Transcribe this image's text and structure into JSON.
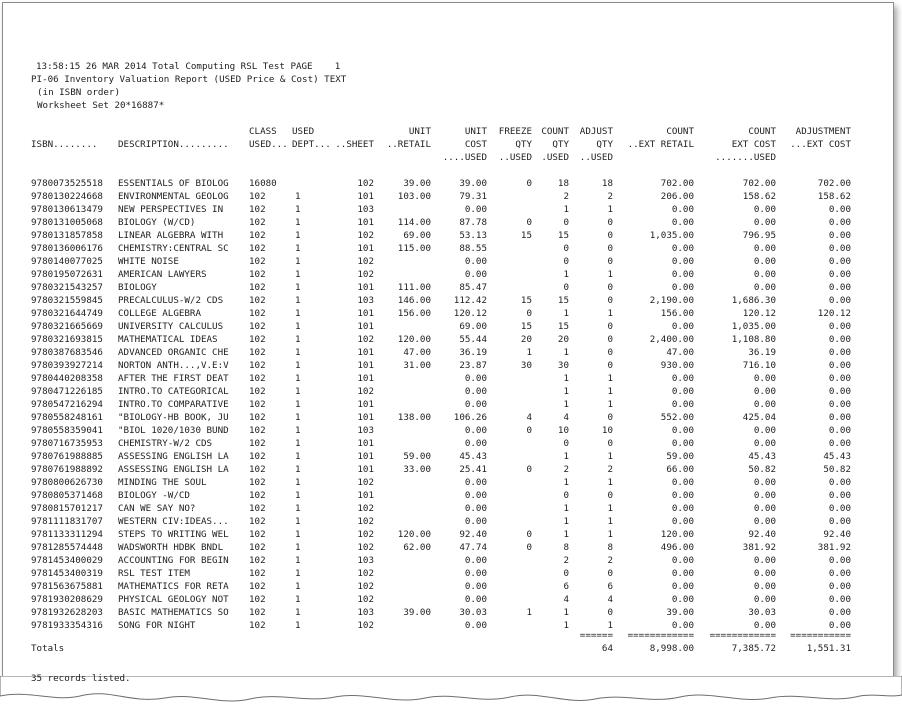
{
  "header": {
    "line1": "13:58:15 26 MAR 2014 Total Computing RSL Test PAGE    1",
    "line2": "PI-06 Inventory Valuation Report (USED Price & Cost) TEXT",
    "line3": "(in ISBN order)",
    "line4": "Worksheet Set 20*16887*"
  },
  "columns": {
    "isbn": [
      "",
      "ISBN........",
      ""
    ],
    "desc": [
      "",
      "DESCRIPTION.........",
      ""
    ],
    "class": [
      "CLASS",
      "USED...",
      ""
    ],
    "dept": [
      "USED",
      "DEPT...",
      ""
    ],
    "sheet": [
      "",
      "..SHEET",
      ""
    ],
    "retail": [
      "UNIT",
      "..RETAIL",
      ""
    ],
    "cost": [
      "UNIT",
      "COST",
      "....USED"
    ],
    "freeze": [
      "FREEZE",
      "QTY",
      "..USED"
    ],
    "count": [
      "COUNT",
      "QTY",
      ".USED"
    ],
    "adjust": [
      "ADJUST",
      "QTY",
      "..USED"
    ],
    "extret": [
      "COUNT",
      "..EXT RETAIL",
      ""
    ],
    "extcost": [
      "COUNT",
      "EXT COST",
      ".......USED"
    ],
    "adjcost": [
      "ADJUSTMENT",
      "...EXT COST",
      ""
    ]
  },
  "rows": [
    {
      "isbn": "9780073525518",
      "desc": "ESSENTIALS OF BIOLOG",
      "class": "16080",
      "dept": "",
      "sheet": "102",
      "retail": "39.00",
      "cost": "39.00",
      "freeze": "0",
      "count": "18",
      "adjust": "18",
      "extret": "702.00",
      "extcost": "702.00",
      "adjcost": "702.00"
    },
    {
      "isbn": "9780130224668",
      "desc": "ENVIRONMENTAL GEOLOG",
      "class": "102",
      "dept": "1",
      "sheet": "101",
      "retail": "103.00",
      "cost": "79.31",
      "freeze": "",
      "count": "2",
      "adjust": "2",
      "extret": "206.00",
      "extcost": "158.62",
      "adjcost": "158.62"
    },
    {
      "isbn": "9780130613479",
      "desc": "NEW PERSPECTIVES IN",
      "class": "102",
      "dept": "1",
      "sheet": "103",
      "retail": "",
      "cost": "0.00",
      "freeze": "",
      "count": "1",
      "adjust": "1",
      "extret": "0.00",
      "extcost": "0.00",
      "adjcost": "0.00"
    },
    {
      "isbn": "9780131005068",
      "desc": "BIOLOGY (W/CD)",
      "class": "102",
      "dept": "1",
      "sheet": "101",
      "retail": "114.00",
      "cost": "87.78",
      "freeze": "0",
      "count": "0",
      "adjust": "0",
      "extret": "0.00",
      "extcost": "0.00",
      "adjcost": "0.00"
    },
    {
      "isbn": "9780131857858",
      "desc": "LINEAR ALGEBRA WITH",
      "class": "102",
      "dept": "1",
      "sheet": "102",
      "retail": "69.00",
      "cost": "53.13",
      "freeze": "15",
      "count": "15",
      "adjust": "0",
      "extret": "1,035.00",
      "extcost": "796.95",
      "adjcost": "0.00"
    },
    {
      "isbn": "9780136006176",
      "desc": "CHEMISTRY:CENTRAL SC",
      "class": "102",
      "dept": "1",
      "sheet": "101",
      "retail": "115.00",
      "cost": "88.55",
      "freeze": "",
      "count": "0",
      "adjust": "0",
      "extret": "0.00",
      "extcost": "0.00",
      "adjcost": "0.00"
    },
    {
      "isbn": "9780140077025",
      "desc": "WHITE NOISE",
      "class": "102",
      "dept": "1",
      "sheet": "102",
      "retail": "",
      "cost": "0.00",
      "freeze": "",
      "count": "0",
      "adjust": "0",
      "extret": "0.00",
      "extcost": "0.00",
      "adjcost": "0.00"
    },
    {
      "isbn": "9780195072631",
      "desc": "AMERICAN LAWYERS",
      "class": "102",
      "dept": "1",
      "sheet": "102",
      "retail": "",
      "cost": "0.00",
      "freeze": "",
      "count": "1",
      "adjust": "1",
      "extret": "0.00",
      "extcost": "0.00",
      "adjcost": "0.00"
    },
    {
      "isbn": "9780321543257",
      "desc": "BIOLOGY",
      "class": "102",
      "dept": "1",
      "sheet": "101",
      "retail": "111.00",
      "cost": "85.47",
      "freeze": "",
      "count": "0",
      "adjust": "0",
      "extret": "0.00",
      "extcost": "0.00",
      "adjcost": "0.00"
    },
    {
      "isbn": "9780321559845",
      "desc": "PRECALCULUS-W/2 CDS",
      "class": "102",
      "dept": "1",
      "sheet": "103",
      "retail": "146.00",
      "cost": "112.42",
      "freeze": "15",
      "count": "15",
      "adjust": "0",
      "extret": "2,190.00",
      "extcost": "1,686.30",
      "adjcost": "0.00"
    },
    {
      "isbn": "9780321644749",
      "desc": "COLLEGE ALGEBRA",
      "class": "102",
      "dept": "1",
      "sheet": "101",
      "retail": "156.00",
      "cost": "120.12",
      "freeze": "0",
      "count": "1",
      "adjust": "1",
      "extret": "156.00",
      "extcost": "120.12",
      "adjcost": "120.12"
    },
    {
      "isbn": "9780321665669",
      "desc": "UNIVERSITY CALCULUS",
      "class": "102",
      "dept": "1",
      "sheet": "101",
      "retail": "",
      "cost": "69.00",
      "freeze": "15",
      "count": "15",
      "adjust": "0",
      "extret": "0.00",
      "extcost": "1,035.00",
      "adjcost": "0.00"
    },
    {
      "isbn": "9780321693815",
      "desc": "MATHEMATICAL IDEAS",
      "class": "102",
      "dept": "1",
      "sheet": "102",
      "retail": "120.00",
      "cost": "55.44",
      "freeze": "20",
      "count": "20",
      "adjust": "0",
      "extret": "2,400.00",
      "extcost": "1,108.80",
      "adjcost": "0.00"
    },
    {
      "isbn": "9780387683546",
      "desc": "ADVANCED ORGANIC CHE",
      "class": "102",
      "dept": "1",
      "sheet": "101",
      "retail": "47.00",
      "cost": "36.19",
      "freeze": "1",
      "count": "1",
      "adjust": "0",
      "extret": "47.00",
      "extcost": "36.19",
      "adjcost": "0.00"
    },
    {
      "isbn": "9780393927214",
      "desc": "NORTON ANTH...,V.E:V",
      "class": "102",
      "dept": "1",
      "sheet": "101",
      "retail": "31.00",
      "cost": "23.87",
      "freeze": "30",
      "count": "30",
      "adjust": "0",
      "extret": "930.00",
      "extcost": "716.10",
      "adjcost": "0.00"
    },
    {
      "isbn": "9780440208358",
      "desc": "AFTER THE FIRST DEAT",
      "class": "102",
      "dept": "1",
      "sheet": "101",
      "retail": "",
      "cost": "0.00",
      "freeze": "",
      "count": "1",
      "adjust": "1",
      "extret": "0.00",
      "extcost": "0.00",
      "adjcost": "0.00"
    },
    {
      "isbn": "9780471226185",
      "desc": "INTRO.TO CATEGORICAL",
      "class": "102",
      "dept": "1",
      "sheet": "102",
      "retail": "",
      "cost": "0.00",
      "freeze": "",
      "count": "1",
      "adjust": "1",
      "extret": "0.00",
      "extcost": "0.00",
      "adjcost": "0.00"
    },
    {
      "isbn": "9780547216294",
      "desc": "INTRO.TO COMPARATIVE",
      "class": "102",
      "dept": "1",
      "sheet": "101",
      "retail": "",
      "cost": "0.00",
      "freeze": "",
      "count": "1",
      "adjust": "1",
      "extret": "0.00",
      "extcost": "0.00",
      "adjcost": "0.00"
    },
    {
      "isbn": "9780558248161",
      "desc": "\"BIOLOGY-HB BOOK, JU",
      "class": "102",
      "dept": "1",
      "sheet": "101",
      "retail": "138.00",
      "cost": "106.26",
      "freeze": "4",
      "count": "4",
      "adjust": "0",
      "extret": "552.00",
      "extcost": "425.04",
      "adjcost": "0.00"
    },
    {
      "isbn": "9780558359041",
      "desc": "\"BIOL 1020/1030 BUND",
      "class": "102",
      "dept": "1",
      "sheet": "103",
      "retail": "",
      "cost": "0.00",
      "freeze": "0",
      "count": "10",
      "adjust": "10",
      "extret": "0.00",
      "extcost": "0.00",
      "adjcost": "0.00"
    },
    {
      "isbn": "9780716735953",
      "desc": "CHEMISTRY-W/2 CDS",
      "class": "102",
      "dept": "1",
      "sheet": "101",
      "retail": "",
      "cost": "0.00",
      "freeze": "",
      "count": "0",
      "adjust": "0",
      "extret": "0.00",
      "extcost": "0.00",
      "adjcost": "0.00"
    },
    {
      "isbn": "9780761988885",
      "desc": "ASSESSING ENGLISH LA",
      "class": "102",
      "dept": "1",
      "sheet": "101",
      "retail": "59.00",
      "cost": "45.43",
      "freeze": "",
      "count": "1",
      "adjust": "1",
      "extret": "59.00",
      "extcost": "45.43",
      "adjcost": "45.43"
    },
    {
      "isbn": "9780761988892",
      "desc": "ASSESSING ENGLISH LA",
      "class": "102",
      "dept": "1",
      "sheet": "101",
      "retail": "33.00",
      "cost": "25.41",
      "freeze": "0",
      "count": "2",
      "adjust": "2",
      "extret": "66.00",
      "extcost": "50.82",
      "adjcost": "50.82"
    },
    {
      "isbn": "9780800626730",
      "desc": "MINDING THE SOUL",
      "class": "102",
      "dept": "1",
      "sheet": "102",
      "retail": "",
      "cost": "0.00",
      "freeze": "",
      "count": "1",
      "adjust": "1",
      "extret": "0.00",
      "extcost": "0.00",
      "adjcost": "0.00"
    },
    {
      "isbn": "9780805371468",
      "desc": "BIOLOGY -W/CD",
      "class": "102",
      "dept": "1",
      "sheet": "101",
      "retail": "",
      "cost": "0.00",
      "freeze": "",
      "count": "0",
      "adjust": "0",
      "extret": "0.00",
      "extcost": "0.00",
      "adjcost": "0.00"
    },
    {
      "isbn": "9780815701217",
      "desc": "CAN WE SAY NO?",
      "class": "102",
      "dept": "1",
      "sheet": "102",
      "retail": "",
      "cost": "0.00",
      "freeze": "",
      "count": "1",
      "adjust": "1",
      "extret": "0.00",
      "extcost": "0.00",
      "adjcost": "0.00"
    },
    {
      "isbn": "9781111831707",
      "desc": "WESTERN CIV:IDEAS...",
      "class": "102",
      "dept": "1",
      "sheet": "102",
      "retail": "",
      "cost": "0.00",
      "freeze": "",
      "count": "1",
      "adjust": "1",
      "extret": "0.00",
      "extcost": "0.00",
      "adjcost": "0.00"
    },
    {
      "isbn": "9781133311294",
      "desc": "STEPS TO WRITING WEL",
      "class": "102",
      "dept": "1",
      "sheet": "102",
      "retail": "120.00",
      "cost": "92.40",
      "freeze": "0",
      "count": "1",
      "adjust": "1",
      "extret": "120.00",
      "extcost": "92.40",
      "adjcost": "92.40"
    },
    {
      "isbn": "9781285574448",
      "desc": "WADSWORTH HDBK BNDL",
      "class": "102",
      "dept": "1",
      "sheet": "102",
      "retail": "62.00",
      "cost": "47.74",
      "freeze": "0",
      "count": "8",
      "adjust": "8",
      "extret": "496.00",
      "extcost": "381.92",
      "adjcost": "381.92"
    },
    {
      "isbn": "9781453400029",
      "desc": "ACCOUNTING FOR BEGIN",
      "class": "102",
      "dept": "1",
      "sheet": "103",
      "retail": "",
      "cost": "0.00",
      "freeze": "",
      "count": "2",
      "adjust": "2",
      "extret": "0.00",
      "extcost": "0.00",
      "adjcost": "0.00"
    },
    {
      "isbn": "9781453400319",
      "desc": "RSL TEST ITEM",
      "class": "102",
      "dept": "1",
      "sheet": "102",
      "retail": "",
      "cost": "0.00",
      "freeze": "",
      "count": "0",
      "adjust": "0",
      "extret": "0.00",
      "extcost": "0.00",
      "adjcost": "0.00"
    },
    {
      "isbn": "9781563675881",
      "desc": "MATHEMATICS FOR RETA",
      "class": "102",
      "dept": "1",
      "sheet": "102",
      "retail": "",
      "cost": "0.00",
      "freeze": "",
      "count": "6",
      "adjust": "6",
      "extret": "0.00",
      "extcost": "0.00",
      "adjcost": "0.00"
    },
    {
      "isbn": "9781930208629",
      "desc": "PHYSICAL GEOLOGY NOT",
      "class": "102",
      "dept": "1",
      "sheet": "102",
      "retail": "",
      "cost": "0.00",
      "freeze": "",
      "count": "4",
      "adjust": "4",
      "extret": "0.00",
      "extcost": "0.00",
      "adjcost": "0.00"
    },
    {
      "isbn": "9781932628203",
      "desc": "BASIC MATHEMATICS SO",
      "class": "102",
      "dept": "1",
      "sheet": "103",
      "retail": "39.00",
      "cost": "30.03",
      "freeze": "1",
      "count": "1",
      "adjust": "0",
      "extret": "39.00",
      "extcost": "30.03",
      "adjcost": "0.00"
    },
    {
      "isbn": "9781933354316",
      "desc": "SONG FOR NIGHT",
      "class": "102",
      "dept": "1",
      "sheet": "102",
      "retail": "",
      "cost": "0.00",
      "freeze": "",
      "count": "1",
      "adjust": "1",
      "extret": "0.00",
      "extcost": "0.00",
      "adjcost": "0.00"
    }
  ],
  "underline": {
    "adjust": "======",
    "extret": "============",
    "extcost": "============",
    "adjcost": "==========="
  },
  "totals": {
    "label": "Totals",
    "adjust": "64",
    "extret": "8,998.00",
    "extcost": "7,385.72",
    "adjcost": "1,551.31"
  },
  "footer": "35 records listed."
}
